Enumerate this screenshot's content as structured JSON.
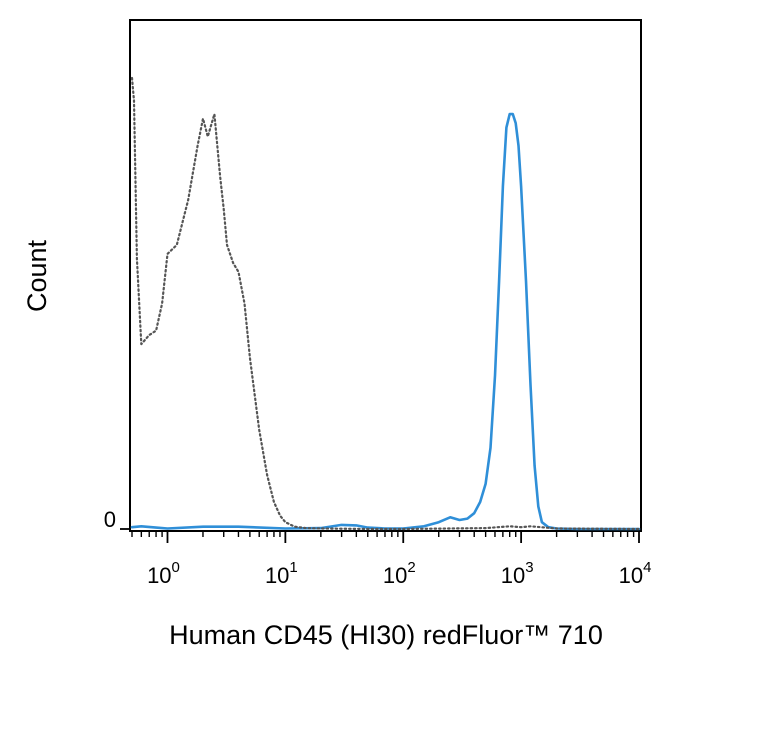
{
  "chart_data": {
    "type": "line",
    "xlabel": "Human CD45 (HI30) redFluor™ 710",
    "ylabel": "Count",
    "x_scale": "log",
    "xlim": [
      0.5,
      10000
    ],
    "ylim": [
      0,
      100
    ],
    "grid": false,
    "legend": "none",
    "y_ticks": [
      {
        "value": 0,
        "label": "0"
      }
    ],
    "x_ticks": [
      {
        "value": 1,
        "base": "10",
        "exp": "0"
      },
      {
        "value": 10,
        "base": "10",
        "exp": "1"
      },
      {
        "value": 100,
        "base": "10",
        "exp": "2"
      },
      {
        "value": 1000,
        "base": "10",
        "exp": "3"
      },
      {
        "value": 10000,
        "base": "10",
        "exp": "4"
      }
    ],
    "series": [
      {
        "color": "#2f8fd8",
        "style": "solid",
        "x": [
          0.5,
          0.6,
          0.8,
          1,
          2,
          4,
          10,
          20,
          30,
          40,
          50,
          70,
          100,
          150,
          200,
          250,
          300,
          350,
          400,
          450,
          500,
          550,
          600,
          650,
          700,
          750,
          800,
          850,
          900,
          950,
          1000,
          1100,
          1200,
          1300,
          1400,
          1500,
          1700,
          2000,
          3000,
          5000,
          10000
        ],
        "y": [
          0.4,
          0.6,
          0.3,
          0.1,
          0.5,
          0.5,
          0.1,
          0.2,
          0.9,
          0.8,
          0.3,
          0.1,
          0.1,
          0.6,
          1.5,
          2.6,
          2.0,
          2.3,
          3.5,
          6.0,
          10,
          18,
          34,
          55,
          76,
          89,
          92,
          92,
          90,
          85,
          76,
          55,
          32,
          14,
          5,
          1.5,
          0.4,
          0.1,
          0,
          0,
          0
        ]
      },
      {
        "color": "#555555",
        "style": "dotted",
        "x": [
          0.5,
          0.52,
          0.55,
          0.6,
          0.7,
          0.8,
          0.9,
          1.0,
          1.2,
          1.5,
          1.8,
          2.0,
          2.2,
          2.5,
          2.8,
          3.0,
          3.2,
          3.6,
          4.0,
          4.5,
          5.0,
          6.0,
          7.0,
          8.0,
          9.0,
          10,
          12,
          15,
          20,
          50,
          100,
          500,
          800,
          1000,
          1200,
          2000,
          10000
        ],
        "y": [
          100,
          95,
          60,
          41,
          43,
          44,
          50,
          61,
          63,
          73,
          85,
          91,
          87,
          92,
          78,
          71,
          63,
          59,
          57,
          50,
          38,
          22,
          12,
          6,
          3,
          1.5,
          0.5,
          0.2,
          0.1,
          0,
          0,
          0.2,
          0.6,
          0.4,
          0.6,
          0.1,
          0
        ]
      }
    ]
  }
}
